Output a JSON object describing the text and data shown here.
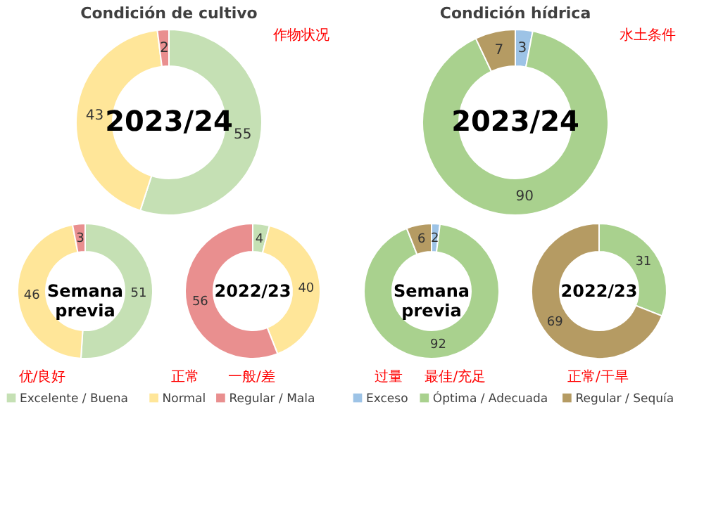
{
  "chart_data": [
    {
      "type": "donut",
      "title": "Condición de cultivo",
      "categories": [
        "Excelente / Buena",
        "Normal",
        "Regular / Mala"
      ],
      "values": [
        55,
        43,
        2
      ],
      "colors": [
        "#c5e0b4",
        "#ffe699",
        "#e98f8f"
      ],
      "data_labels": true,
      "legend": "bottom",
      "annotations": [
        "2023/24",
        "作物状况",
        "优/良好",
        "正常",
        "一般/差"
      ]
    },
    {
      "type": "donut",
      "categories": [
        null,
        null,
        null
      ],
      "values": [
        51,
        46,
        3
      ],
      "colors": [
        "#c5e0b4",
        "#ffe699",
        "#e98f8f"
      ],
      "data_labels": true,
      "annotations": [
        "Semana previa"
      ]
    },
    {
      "type": "donut",
      "categories": [
        null,
        null,
        null
      ],
      "values": [
        4,
        40,
        56
      ],
      "colors": [
        "#c5e0b4",
        "#ffe699",
        "#e98f8f"
      ],
      "data_labels": true,
      "annotations": [
        "2022/23"
      ]
    },
    {
      "type": "donut",
      "title": "Condición hídrica",
      "categories": [
        "Exceso",
        "Óptima / Adecuada",
        "Regular / Sequía"
      ],
      "values": [
        3,
        90,
        7
      ],
      "colors": [
        "#9dc3e6",
        "#a9d18e",
        "#b59b63"
      ],
      "data_labels": true,
      "legend": "bottom",
      "annotations": [
        "2023/24",
        "水土条件",
        "过量",
        "最佳/充足",
        "正常/干旱"
      ]
    },
    {
      "type": "donut",
      "categories": [
        null,
        null,
        null
      ],
      "values": [
        2,
        92,
        6
      ],
      "colors": [
        "#9dc3e6",
        "#a9d18e",
        "#b59b63"
      ],
      "data_labels": true,
      "annotations": [
        "Semana previa"
      ]
    },
    {
      "type": "donut",
      "categories": [
        null,
        null,
        null
      ],
      "values": [
        0,
        31,
        69
      ],
      "colors": [
        "#9dc3e6",
        "#a9d18e",
        "#b59b63"
      ],
      "value_labels": [
        null,
        "31",
        "69"
      ],
      "annotations": [
        "2022/23"
      ]
    }
  ]
}
